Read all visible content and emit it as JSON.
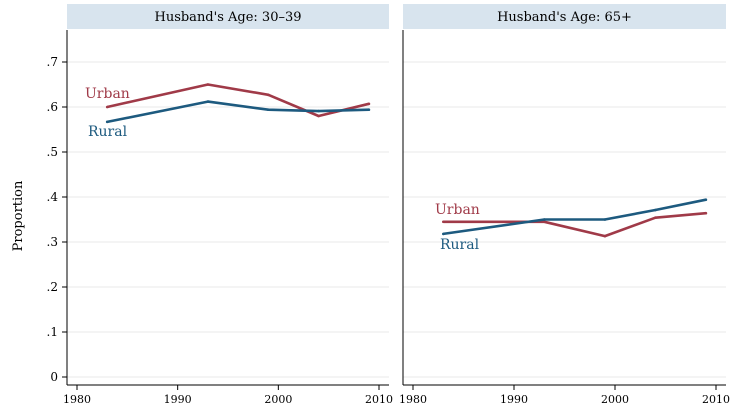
{
  "figure": {
    "ylabel": "Proportion",
    "colors": {
      "urban": "#a03a48",
      "rural": "#1d5a7f",
      "header_bg": "#d8e4ee",
      "axis": "#000000"
    }
  },
  "chart_data": [
    {
      "type": "line",
      "title": "Husband's Age: 30–39",
      "ylabel": "Proportion",
      "xlim": [
        1980,
        2010
      ],
      "ylim": [
        0,
        0.7
      ],
      "xticks": [
        "1980",
        "1990",
        "2000",
        "2010"
      ],
      "yticks": [
        "0",
        ".1",
        ".2",
        ".3",
        ".4",
        ".5",
        ".6",
        ".7"
      ],
      "grid": true,
      "series": [
        {
          "name": "Urban",
          "x": [
            1983,
            1993,
            1999,
            2004,
            2009
          ],
          "values": [
            0.6,
            0.65,
            0.627,
            0.58,
            0.607
          ]
        },
        {
          "name": "Rural",
          "x": [
            1983,
            1993,
            1999,
            2004,
            2009
          ],
          "values": [
            0.567,
            0.612,
            0.594,
            0.591,
            0.594
          ]
        }
      ]
    },
    {
      "type": "line",
      "title": "Husband's Age: 65+",
      "xlim": [
        1980,
        2010
      ],
      "ylim": [
        0,
        0.7
      ],
      "xticks": [
        "1980",
        "1990",
        "2000",
        "2010"
      ],
      "grid": true,
      "series": [
        {
          "name": "Urban",
          "x": [
            1983,
            1993,
            1999,
            2004,
            2009
          ],
          "values": [
            0.345,
            0.345,
            0.313,
            0.354,
            0.364
          ]
        },
        {
          "name": "Rural",
          "x": [
            1983,
            1993,
            1999,
            2004,
            2009
          ],
          "values": [
            0.318,
            0.35,
            0.35,
            0.371,
            0.394
          ]
        }
      ]
    }
  ]
}
